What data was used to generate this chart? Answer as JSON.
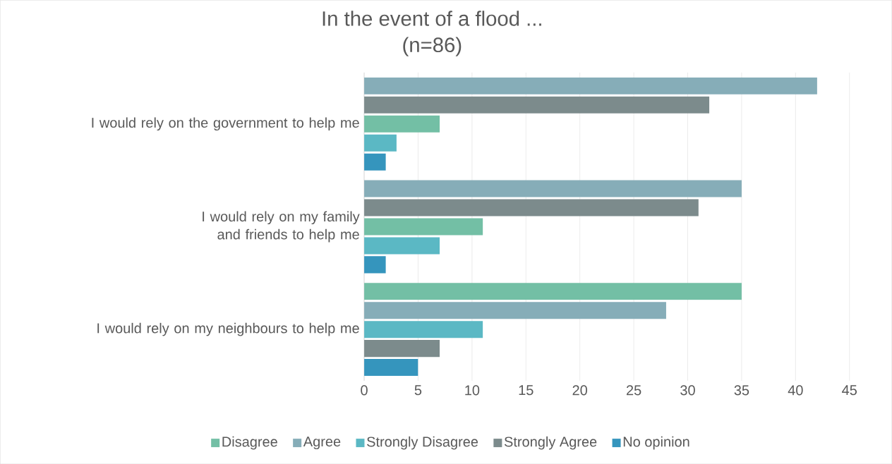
{
  "chart_data": {
    "type": "bar",
    "orientation": "horizontal",
    "title": "In the event of a flood ...",
    "subtitle": "(n=86)",
    "categories": [
      "I would rely on the government to help me",
      "I would rely on my family and friends to help me",
      "I would rely on my neighbours to help me"
    ],
    "series": [
      {
        "name": "Disagree",
        "color": "#73bfa5",
        "values": [
          7,
          11,
          35
        ]
      },
      {
        "name": "Agree",
        "color": "#86adb8",
        "values": [
          42,
          35,
          28
        ]
      },
      {
        "name": "Strongly Disagree",
        "color": "#5bb8c4",
        "values": [
          3,
          7,
          11
        ]
      },
      {
        "name": "Strongly Agree",
        "color": "#7c8b8c",
        "values": [
          32,
          31,
          7
        ]
      },
      {
        "name": "No opinion",
        "color": "#3595bd",
        "values": [
          2,
          2,
          5
        ]
      }
    ],
    "xlim": [
      0,
      45
    ],
    "xticks": [
      0,
      5,
      10,
      15,
      20,
      25,
      30,
      35,
      40,
      45
    ],
    "grid": "x",
    "legend": "bottom"
  }
}
